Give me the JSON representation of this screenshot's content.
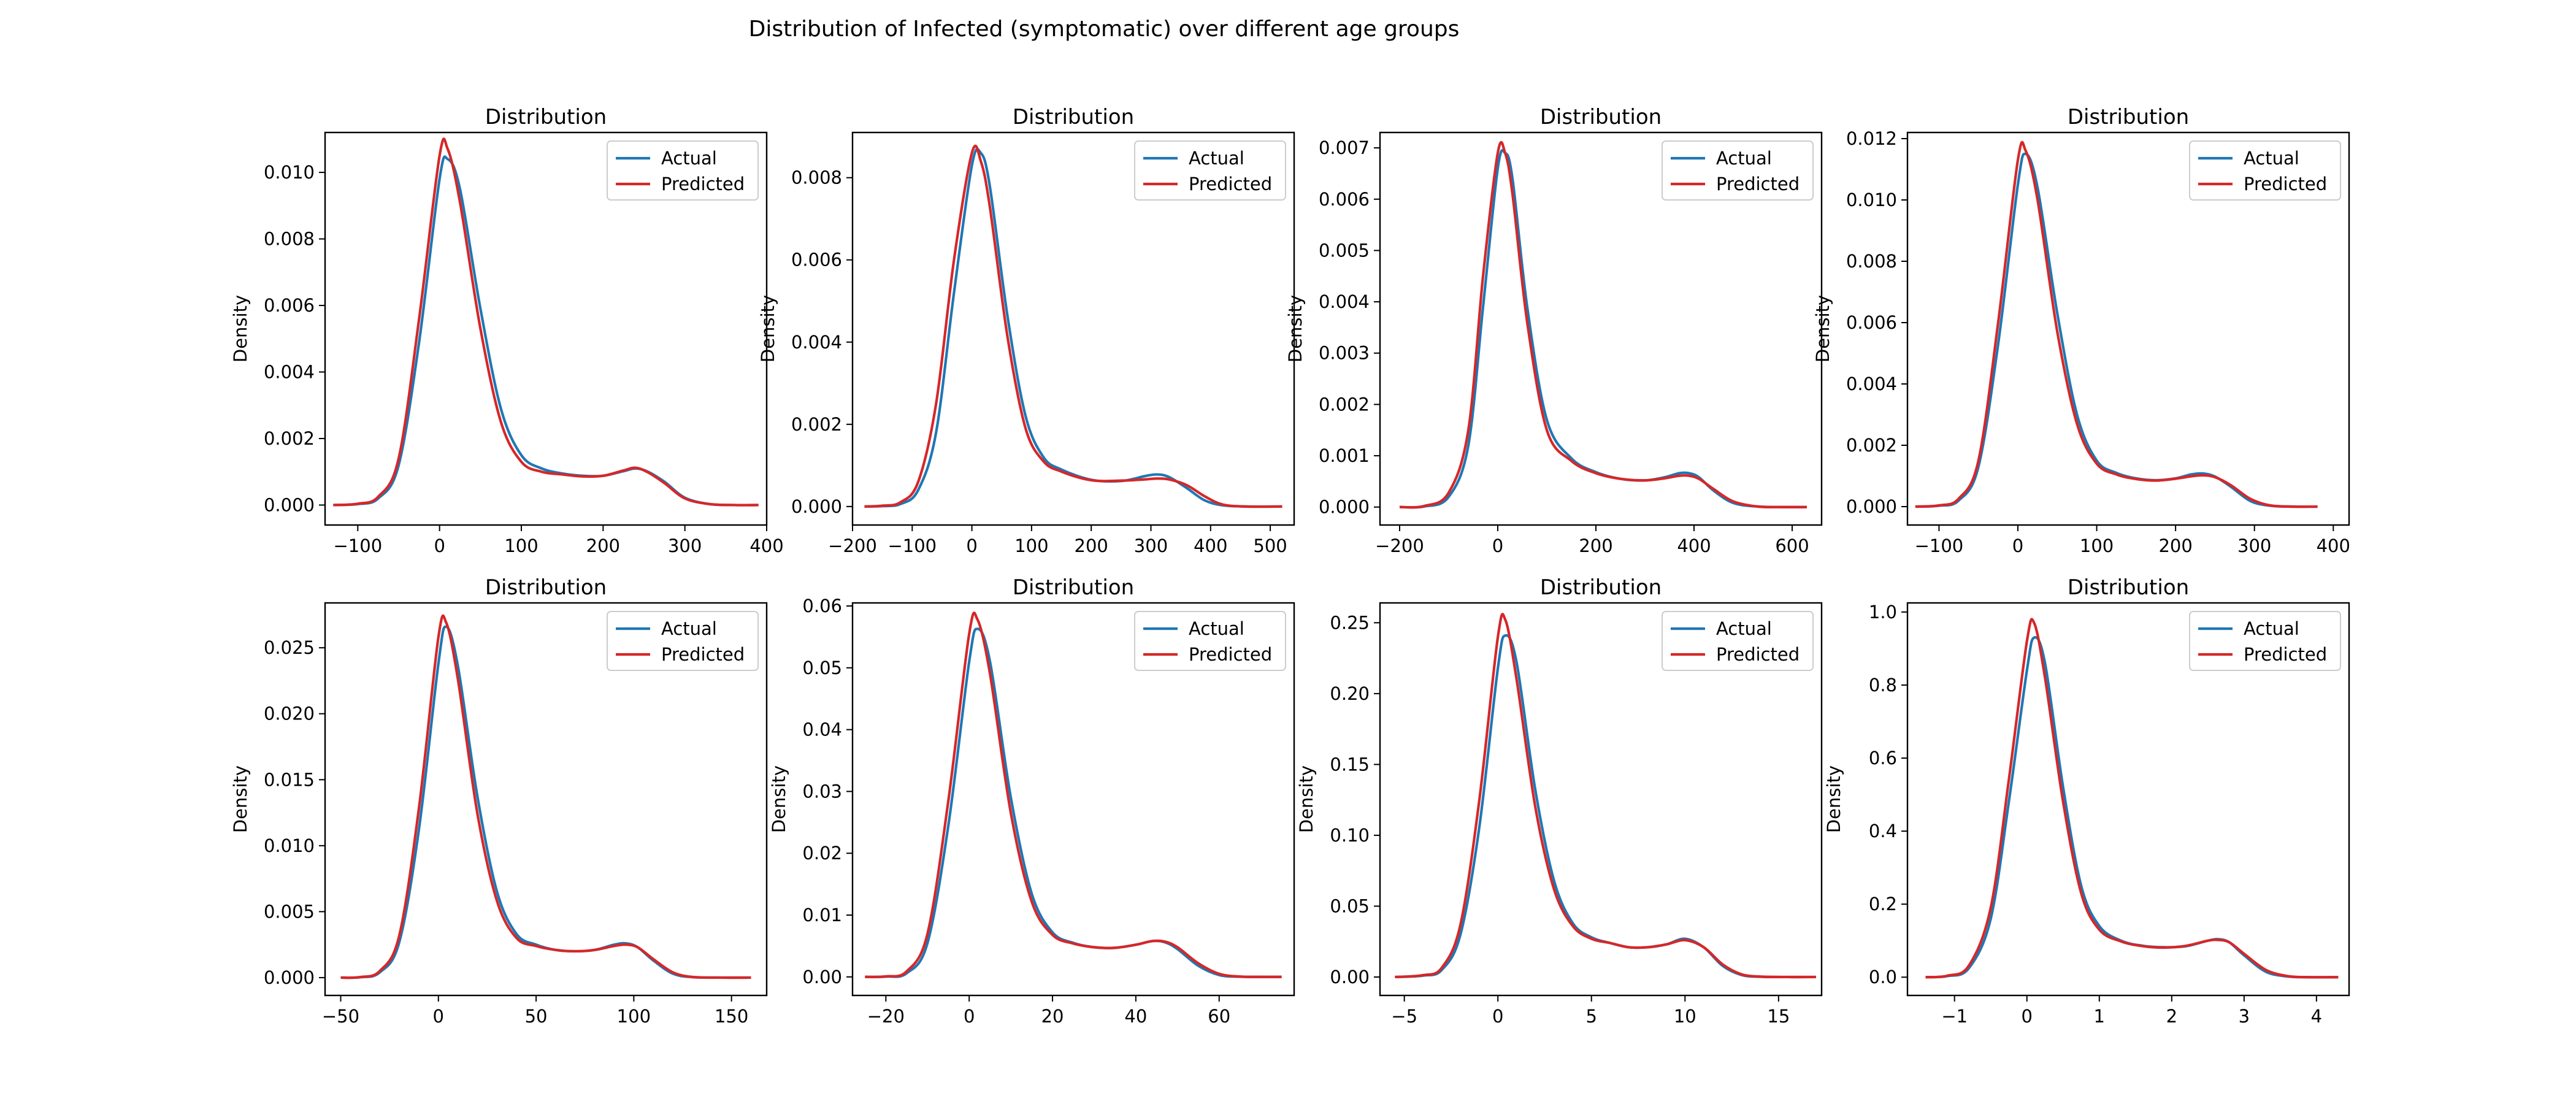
{
  "figure": {
    "suptitle": "Distribution of Infected (symptomatic) over different age groups"
  },
  "colors": {
    "actual": "#1f77b4",
    "predicted": "#d62728"
  },
  "chart_data": [
    {
      "type": "line",
      "title": "Distribution",
      "xlabel": "",
      "ylabel": "Density",
      "legend": {
        "position": "top-right",
        "entries": [
          "Actual",
          "Predicted"
        ]
      },
      "xlim": [
        -140,
        400
      ],
      "ylim": [
        -0.0006,
        0.0112
      ],
      "xticks": [
        -100,
        0,
        100,
        200,
        300,
        400
      ],
      "yticks": [
        0.0,
        0.002,
        0.004,
        0.006,
        0.008,
        0.01
      ],
      "ytick_decimals": 3,
      "x": [
        -130,
        -100,
        -75,
        -50,
        -25,
        0,
        10,
        25,
        50,
        75,
        100,
        125,
        150,
        175,
        200,
        225,
        240,
        255,
        275,
        300,
        330,
        360,
        390
      ],
      "series": [
        {
          "name": "Actual",
          "values": [
            0,
            3e-05,
            0.0002,
            0.0012,
            0.0049,
            0.0098,
            0.0104,
            0.0095,
            0.0059,
            0.0029,
            0.0015,
            0.0011,
            0.00095,
            0.00088,
            0.00088,
            0.00102,
            0.0011,
            0.001,
            0.0007,
            0.00022,
            3e-05,
            0,
            0
          ]
        },
        {
          "name": "Predicted",
          "values": [
            0,
            4e-05,
            0.00025,
            0.0014,
            0.0056,
            0.0105,
            0.0107,
            0.0091,
            0.0053,
            0.0025,
            0.0013,
            0.001,
            0.00092,
            0.00086,
            0.00088,
            0.00104,
            0.00112,
            0.00098,
            0.00066,
            0.0002,
            3e-05,
            0,
            0
          ]
        }
      ]
    },
    {
      "type": "line",
      "title": "Distribution",
      "xlabel": "",
      "ylabel": "Density",
      "legend": {
        "position": "top-right",
        "entries": [
          "Actual",
          "Predicted"
        ]
      },
      "xlim": [
        -200,
        540
      ],
      "ylim": [
        -0.00045,
        0.0091
      ],
      "xticks": [
        -200,
        -100,
        0,
        100,
        200,
        300,
        400,
        500
      ],
      "yticks": [
        0.0,
        0.002,
        0.004,
        0.006,
        0.008
      ],
      "ytick_decimals": 3,
      "x": [
        -180,
        -150,
        -120,
        -90,
        -60,
        -30,
        0,
        15,
        30,
        60,
        90,
        120,
        150,
        200,
        250,
        290,
        310,
        330,
        360,
        390,
        420,
        460,
        520
      ],
      "series": [
        {
          "name": "Actual",
          "values": [
            0,
            1e-05,
            6e-05,
            0.0004,
            0.0018,
            0.0052,
            0.0083,
            0.0086,
            0.0078,
            0.0046,
            0.0022,
            0.0012,
            0.0009,
            0.00065,
            0.00062,
            0.00074,
            0.00078,
            0.00072,
            0.00045,
            0.00015,
            3e-05,
            0,
            0
          ]
        },
        {
          "name": "Predicted",
          "values": [
            0,
            2e-05,
            0.0001,
            0.0006,
            0.0025,
            0.006,
            0.0086,
            0.0084,
            0.0073,
            0.0041,
            0.0019,
            0.0011,
            0.00085,
            0.00064,
            0.00063,
            0.00066,
            0.00068,
            0.00066,
            0.00052,
            0.00025,
            5e-05,
            0,
            0
          ]
        }
      ]
    },
    {
      "type": "line",
      "title": "Distribution",
      "xlabel": "",
      "ylabel": "Density",
      "legend": {
        "position": "top-right",
        "entries": [
          "Actual",
          "Predicted"
        ]
      },
      "xlim": [
        -240,
        660
      ],
      "ylim": [
        -0.00035,
        0.0073
      ],
      "xticks": [
        -200,
        0,
        200,
        400,
        600
      ],
      "yticks": [
        0.0,
        0.001,
        0.002,
        0.003,
        0.004,
        0.005,
        0.006,
        0.007
      ],
      "ytick_decimals": 3,
      "x": [
        -200,
        -150,
        -100,
        -60,
        -30,
        0,
        15,
        30,
        60,
        100,
        150,
        200,
        250,
        300,
        340,
        370,
        390,
        410,
        440,
        480,
        530,
        580,
        630
      ],
      "series": [
        {
          "name": "Actual",
          "values": [
            0,
            1e-05,
            0.0002,
            0.0012,
            0.0039,
            0.0066,
            0.0069,
            0.0064,
            0.0039,
            0.0017,
            0.00095,
            0.00068,
            0.00055,
            0.00052,
            0.00058,
            0.00066,
            0.00066,
            0.00058,
            0.00032,
            8e-05,
            1e-05,
            0,
            0
          ]
        },
        {
          "name": "Predicted",
          "values": [
            0,
            2e-05,
            0.00028,
            0.0015,
            0.0045,
            0.0069,
            0.0069,
            0.0061,
            0.0036,
            0.0015,
            0.0009,
            0.00066,
            0.00055,
            0.00052,
            0.00056,
            0.00061,
            0.00061,
            0.00055,
            0.00035,
            0.00011,
            1e-05,
            0,
            0
          ]
        }
      ]
    },
    {
      "type": "line",
      "title": "Distribution",
      "xlabel": "",
      "ylabel": "Density",
      "legend": {
        "position": "top-right",
        "entries": [
          "Actual",
          "Predicted"
        ]
      },
      "xlim": [
        -140,
        420
      ],
      "ylim": [
        -0.0006,
        0.0122
      ],
      "xticks": [
        -100,
        0,
        100,
        200,
        300,
        400
      ],
      "yticks": [
        0.0,
        0.002,
        0.004,
        0.006,
        0.008,
        0.01,
        0.012
      ],
      "ytick_decimals": 3,
      "x": [
        -130,
        -100,
        -75,
        -50,
        -25,
        0,
        10,
        25,
        50,
        75,
        100,
        125,
        150,
        175,
        200,
        220,
        235,
        250,
        270,
        295,
        320,
        350,
        380
      ],
      "series": [
        {
          "name": "Actual",
          "values": [
            0,
            3e-05,
            0.0002,
            0.0013,
            0.0053,
            0.0105,
            0.0115,
            0.0104,
            0.0063,
            0.003,
            0.0015,
            0.0011,
            0.00092,
            0.00086,
            0.00092,
            0.00105,
            0.00108,
            0.00098,
            0.00065,
            0.00018,
            3e-05,
            0,
            0
          ]
        },
        {
          "name": "Predicted",
          "values": [
            0,
            4e-05,
            0.00026,
            0.0015,
            0.006,
            0.0113,
            0.0116,
            0.01,
            0.0057,
            0.0027,
            0.0014,
            0.00105,
            0.0009,
            0.00085,
            0.00091,
            0.00099,
            0.00102,
            0.00096,
            0.0007,
            0.00025,
            4e-05,
            0,
            0
          ]
        }
      ]
    },
    {
      "type": "line",
      "title": "Distribution",
      "xlabel": "",
      "ylabel": "Density",
      "legend": {
        "position": "top-right",
        "entries": [
          "Actual",
          "Predicted"
        ]
      },
      "xlim": [
        -58,
        168
      ],
      "ylim": [
        -0.00135,
        0.0284
      ],
      "xticks": [
        -50,
        0,
        50,
        100,
        150
      ],
      "yticks": [
        0.0,
        0.005,
        0.01,
        0.015,
        0.02,
        0.025
      ],
      "ytick_decimals": 3,
      "x": [
        -50,
        -40,
        -30,
        -20,
        -10,
        0,
        4,
        10,
        20,
        30,
        40,
        50,
        60,
        70,
        80,
        90,
        96,
        102,
        110,
        120,
        130,
        145,
        160
      ],
      "series": [
        {
          "name": "Actual",
          "values": [
            0,
            3e-05,
            0.0004,
            0.0027,
            0.0112,
            0.0238,
            0.0266,
            0.0236,
            0.0137,
            0.0065,
            0.0033,
            0.0025,
            0.0021,
            0.002,
            0.0021,
            0.0025,
            0.0026,
            0.0023,
            0.0013,
            0.0003,
            4e-05,
            0,
            0
          ]
        },
        {
          "name": "Predicted",
          "values": [
            0,
            4e-05,
            0.0005,
            0.0032,
            0.0128,
            0.0258,
            0.0269,
            0.0226,
            0.0124,
            0.0058,
            0.003,
            0.0024,
            0.0021,
            0.002,
            0.0021,
            0.0024,
            0.0025,
            0.0023,
            0.0014,
            0.0004,
            5e-05,
            0,
            0
          ]
        }
      ]
    },
    {
      "type": "line",
      "title": "Distribution",
      "xlabel": "",
      "ylabel": "Density",
      "legend": {
        "position": "top-right",
        "entries": [
          "Actual",
          "Predicted"
        ]
      },
      "xlim": [
        -28,
        78
      ],
      "ylim": [
        -0.003,
        0.0605
      ],
      "xticks": [
        -20,
        0,
        20,
        40,
        60
      ],
      "yticks": [
        0.0,
        0.01,
        0.02,
        0.03,
        0.04,
        0.05,
        0.06
      ],
      "ytick_decimals": 2,
      "x": [
        -25,
        -20,
        -15,
        -10,
        -5,
        0,
        2,
        5,
        10,
        15,
        20,
        25,
        30,
        35,
        40,
        44,
        47,
        50,
        55,
        60,
        65,
        70,
        75
      ],
      "series": [
        {
          "name": "Actual",
          "values": [
            0,
            5e-05,
            0.0006,
            0.0055,
            0.0245,
            0.051,
            0.0563,
            0.051,
            0.029,
            0.0135,
            0.0072,
            0.0055,
            0.0048,
            0.0047,
            0.0052,
            0.0058,
            0.0056,
            0.0045,
            0.0018,
            0.0003,
            3e-05,
            0,
            0
          ]
        },
        {
          "name": "Predicted",
          "values": [
            0,
            8e-05,
            0.0009,
            0.007,
            0.0285,
            0.0555,
            0.0578,
            0.049,
            0.0265,
            0.0122,
            0.0068,
            0.0054,
            0.0048,
            0.0047,
            0.0052,
            0.0058,
            0.0057,
            0.0048,
            0.0022,
            0.0005,
            5e-05,
            0,
            0
          ]
        }
      ]
    },
    {
      "type": "line",
      "title": "Distribution",
      "xlabel": "",
      "ylabel": "Density",
      "legend": {
        "position": "top-right",
        "entries": [
          "Actual",
          "Predicted"
        ]
      },
      "xlim": [
        -6.3,
        17.3
      ],
      "ylim": [
        -0.013,
        0.264
      ],
      "xticks": [
        -5,
        0,
        5,
        10,
        15
      ],
      "yticks": [
        0.0,
        0.05,
        0.1,
        0.15,
        0.2,
        0.25
      ],
      "ytick_decimals": 2,
      "x": [
        -5.5,
        -4,
        -3,
        -2,
        -1,
        0,
        0.4,
        1,
        2,
        3,
        4,
        5,
        6,
        7,
        8,
        9,
        10,
        11,
        12,
        13,
        14,
        15.5,
        17
      ],
      "series": [
        {
          "name": "Actual",
          "values": [
            0,
            0.001,
            0.005,
            0.03,
            0.105,
            0.218,
            0.241,
            0.222,
            0.132,
            0.068,
            0.038,
            0.028,
            0.024,
            0.021,
            0.021,
            0.023,
            0.027,
            0.021,
            0.008,
            0.0015,
            0.0002,
            0,
            0
          ]
        },
        {
          "name": "Predicted",
          "values": [
            0,
            0.0013,
            0.0065,
            0.037,
            0.124,
            0.24,
            0.252,
            0.21,
            0.12,
            0.062,
            0.036,
            0.027,
            0.024,
            0.021,
            0.021,
            0.023,
            0.026,
            0.021,
            0.009,
            0.002,
            0.0003,
            0,
            0
          ]
        }
      ]
    },
    {
      "type": "line",
      "title": "Distribution",
      "xlabel": "",
      "ylabel": "Density",
      "legend": {
        "position": "top-right",
        "entries": [
          "Actual",
          "Predicted"
        ]
      },
      "xlim": [
        -1.65,
        4.45
      ],
      "ylim": [
        -0.05,
        1.025
      ],
      "xticks": [
        -1,
        0,
        1,
        2,
        3,
        4
      ],
      "yticks": [
        0.0,
        0.2,
        0.4,
        0.6,
        0.8,
        1.0
      ],
      "ytick_decimals": 1,
      "x": [
        -1.4,
        -1.1,
        -0.8,
        -0.5,
        -0.25,
        0,
        0.1,
        0.25,
        0.5,
        0.75,
        1,
        1.3,
        1.6,
        1.9,
        2.2,
        2.5,
        2.65,
        2.8,
        3.0,
        3.3,
        3.6,
        3.9,
        4.3
      ],
      "series": [
        {
          "name": "Actual",
          "values": [
            0,
            0.003,
            0.025,
            0.16,
            0.48,
            0.84,
            0.93,
            0.86,
            0.52,
            0.25,
            0.14,
            0.1,
            0.086,
            0.082,
            0.085,
            0.1,
            0.104,
            0.095,
            0.06,
            0.015,
            0.002,
            0,
            0
          ]
        },
        {
          "name": "Predicted",
          "values": [
            0,
            0.004,
            0.032,
            0.19,
            0.54,
            0.92,
            0.97,
            0.82,
            0.48,
            0.23,
            0.13,
            0.098,
            0.085,
            0.081,
            0.086,
            0.1,
            0.102,
            0.095,
            0.064,
            0.02,
            0.003,
            0,
            0
          ]
        }
      ]
    }
  ]
}
